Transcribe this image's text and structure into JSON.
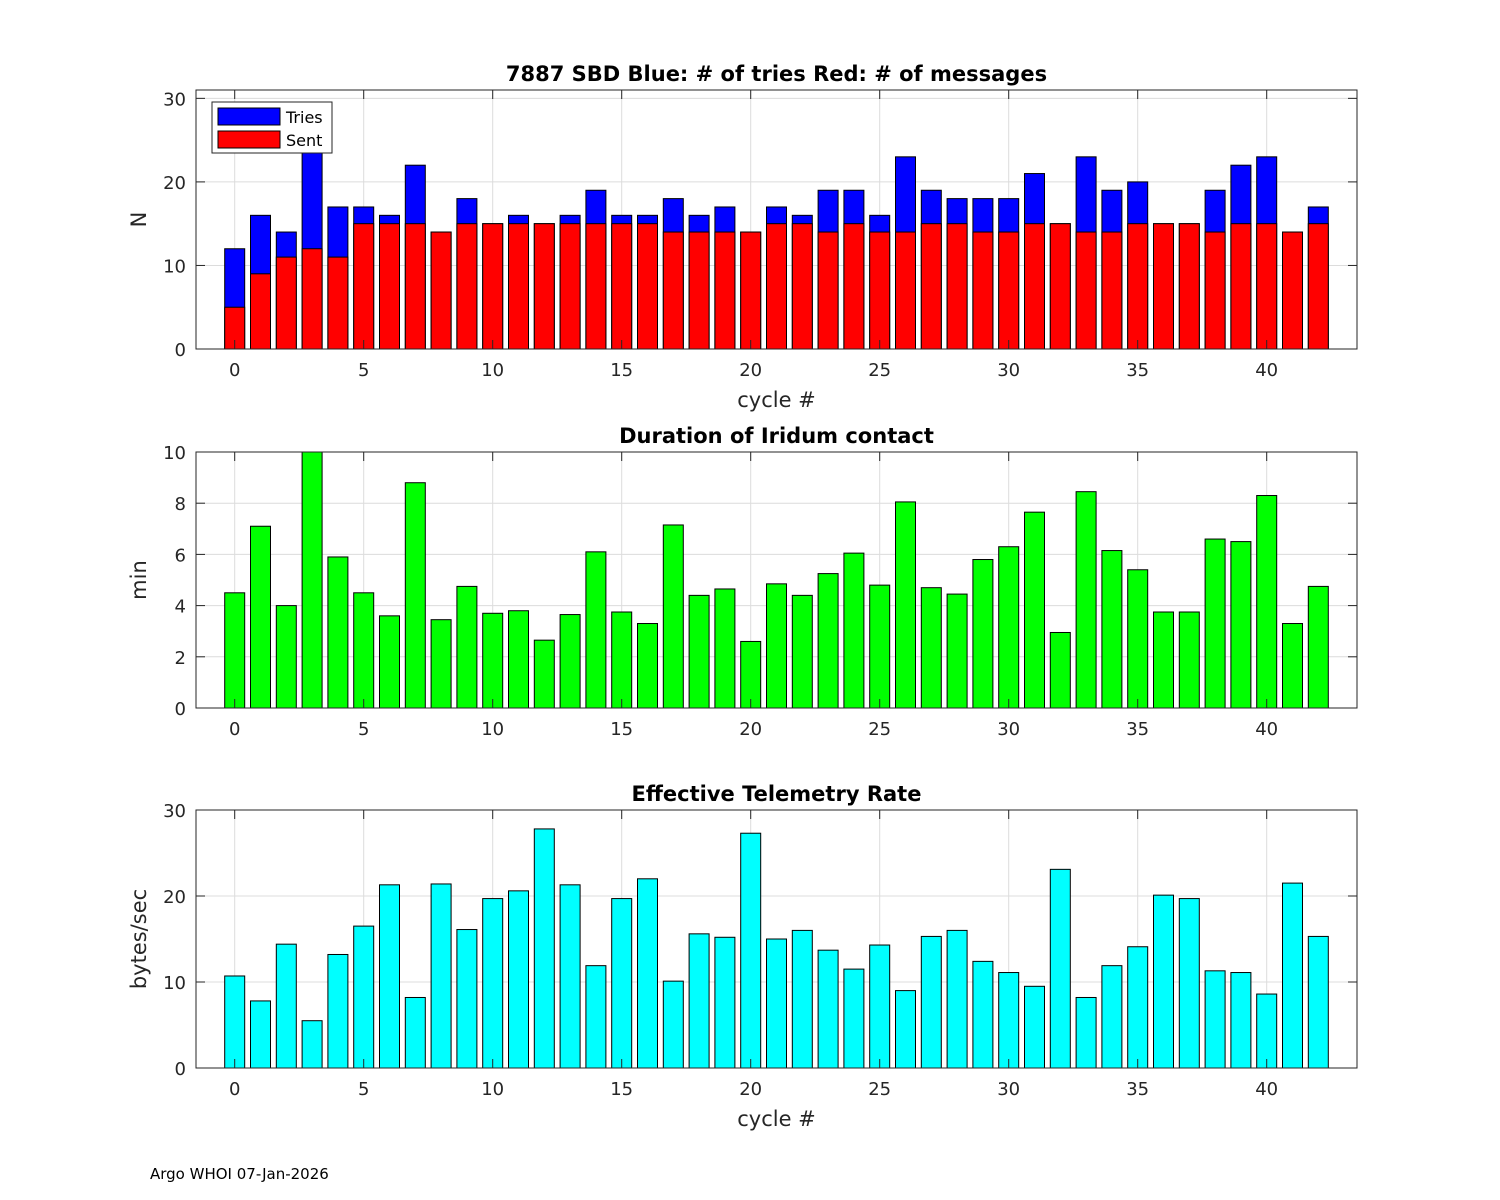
{
  "footer": "Argo WHOI 07-Jan-2026",
  "colors": {
    "tries": "#0000ff",
    "sent": "#ff0000",
    "duration": "#00ff00",
    "rate": "#00ffff",
    "grid": "#dcdcdc"
  },
  "chart_data": [
    {
      "type": "bar",
      "title": "7887 SBD  Blue: # of tries   Red: # of messages",
      "xlabel": "cycle #",
      "ylabel": "N",
      "xlim": [
        -1.5,
        43.5
      ],
      "ylim": [
        0,
        31
      ],
      "xticks": [
        0,
        5,
        10,
        15,
        20,
        25,
        30,
        35,
        40
      ],
      "yticks": [
        0,
        10,
        20,
        30
      ],
      "grid": true,
      "legend": {
        "position": "top-left",
        "entries": [
          "Tries",
          "Sent"
        ]
      },
      "x": [
        0,
        1,
        2,
        3,
        4,
        5,
        6,
        7,
        8,
        9,
        10,
        11,
        12,
        13,
        14,
        15,
        16,
        17,
        18,
        19,
        20,
        21,
        22,
        23,
        24,
        25,
        26,
        27,
        28,
        29,
        30,
        31,
        32,
        33,
        34,
        35,
        36,
        37,
        38,
        39,
        40,
        41,
        42
      ],
      "series": [
        {
          "name": "Tries",
          "values": [
            12,
            16,
            14,
            24,
            17,
            17,
            16,
            22,
            14,
            18,
            15,
            16,
            15,
            16,
            19,
            16,
            16,
            18,
            16,
            17,
            14,
            17,
            16,
            19,
            19,
            16,
            23,
            19,
            18,
            18,
            18,
            21,
            15,
            23,
            19,
            20,
            15,
            15,
            19,
            22,
            23,
            14,
            17
          ]
        },
        {
          "name": "Sent",
          "values": [
            5,
            9,
            11,
            12,
            11,
            15,
            15,
            15,
            14,
            15,
            15,
            15,
            15,
            15,
            15,
            15,
            15,
            14,
            14,
            14,
            14,
            15,
            15,
            14,
            15,
            14,
            14,
            15,
            15,
            14,
            14,
            15,
            15,
            14,
            14,
            15,
            15,
            15,
            14,
            15,
            15,
            14,
            15
          ]
        }
      ]
    },
    {
      "type": "bar",
      "title": "Duration of Iridum contact",
      "xlabel": "",
      "ylabel": "min",
      "xlim": [
        -1.5,
        43.5
      ],
      "ylim": [
        0,
        10
      ],
      "xticks": [
        0,
        5,
        10,
        15,
        20,
        25,
        30,
        35,
        40
      ],
      "yticks": [
        0,
        2,
        4,
        6,
        8,
        10
      ],
      "grid": true,
      "x": [
        -1,
        0,
        1,
        2,
        3,
        4,
        5,
        6,
        7,
        8,
        9,
        10,
        11,
        12,
        13,
        14,
        15,
        16,
        17,
        18,
        19,
        20,
        21,
        22,
        23,
        24,
        25,
        26,
        27,
        28,
        29,
        30,
        31,
        32,
        33,
        34,
        35,
        36,
        37,
        38,
        39,
        40,
        41,
        42
      ],
      "values": [
        0,
        4.5,
        7.1,
        4.0,
        10.1,
        5.9,
        4.5,
        3.6,
        8.8,
        3.45,
        4.75,
        3.7,
        3.8,
        2.65,
        3.65,
        6.1,
        3.75,
        3.3,
        7.15,
        4.4,
        4.65,
        2.6,
        4.85,
        4.4,
        5.25,
        6.05,
        4.8,
        8.05,
        4.7,
        4.45,
        5.8,
        6.3,
        7.65,
        2.95,
        8.45,
        6.15,
        5.4,
        3.75,
        3.75,
        6.6,
        6.5,
        8.3,
        3.3,
        4.75
      ]
    },
    {
      "type": "bar",
      "title": "Effective Telemetry Rate",
      "xlabel": "cycle #",
      "ylabel": "bytes/sec",
      "xlim": [
        -1.5,
        43.5
      ],
      "ylim": [
        0,
        30
      ],
      "xticks": [
        0,
        5,
        10,
        15,
        20,
        25,
        30,
        35,
        40
      ],
      "yticks": [
        0,
        10,
        20,
        30
      ],
      "grid": true,
      "x": [
        0,
        1,
        2,
        3,
        4,
        5,
        6,
        7,
        8,
        9,
        10,
        11,
        12,
        13,
        14,
        15,
        16,
        17,
        18,
        19,
        20,
        21,
        22,
        23,
        24,
        25,
        26,
        27,
        28,
        29,
        30,
        31,
        32,
        33,
        34,
        35,
        36,
        37,
        38,
        39,
        40,
        41,
        42
      ],
      "values": [
        10.7,
        7.8,
        14.4,
        5.5,
        13.2,
        16.5,
        21.3,
        8.2,
        21.4,
        16.1,
        19.7,
        20.6,
        27.8,
        21.3,
        11.9,
        19.7,
        22.0,
        10.1,
        15.6,
        15.2,
        27.3,
        15.0,
        16.0,
        13.7,
        11.5,
        14.3,
        9.0,
        15.3,
        16.0,
        12.4,
        11.1,
        9.5,
        23.1,
        8.2,
        11.9,
        14.1,
        20.1,
        19.7,
        11.3,
        11.1,
        8.6,
        21.5,
        15.3
      ]
    }
  ]
}
